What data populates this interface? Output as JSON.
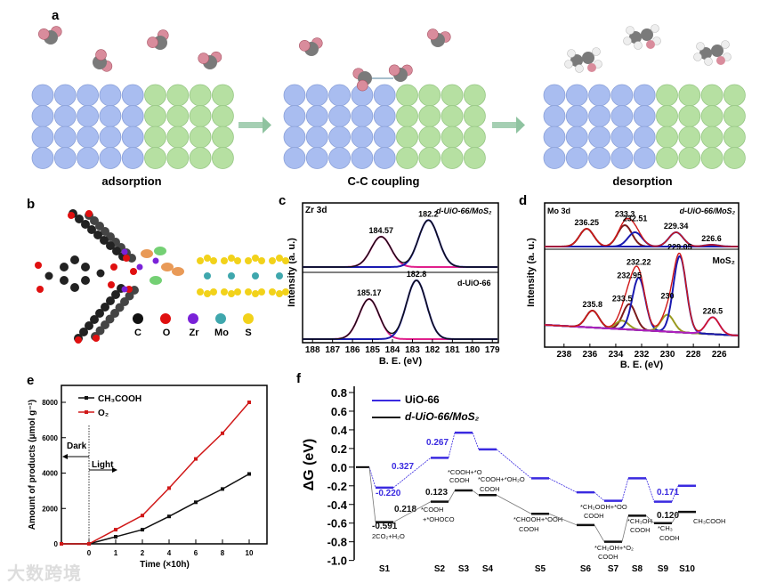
{
  "panels": {
    "a": "a",
    "b": "b",
    "c": "c",
    "d": "d",
    "e": "e",
    "f": "f"
  },
  "panel_a": {
    "steps": [
      "adsorption",
      "C-C coupling",
      "desorption"
    ],
    "colors": {
      "zr_side": "#a9bdf0",
      "mo_side": "#b6e0a2",
      "carbon": "#7a7a7a",
      "oxygen": "#d98c9c",
      "hydrogen": "#eeeeee",
      "arrow": "#8fc3a0"
    }
  },
  "panel_b": {
    "legend": [
      {
        "label": "C",
        "color": "#111111"
      },
      {
        "label": "O",
        "color": "#e01010"
      },
      {
        "label": "Zr",
        "color": "#7a22d8"
      },
      {
        "label": "Mo",
        "color": "#3fa7ad"
      },
      {
        "label": "S",
        "color": "#f2d21a"
      }
    ]
  },
  "watermark": "大数跨境",
  "chart_data": [
    {
      "panel": "c",
      "type": "line",
      "title": "Zr 3d",
      "xlabel": "B. E. (eV)",
      "ylabel": "Intensity (a. u.)",
      "xlim": [
        188.5,
        178.7
      ],
      "xticks": [
        "188",
        "187",
        "186",
        "185",
        "184",
        "183",
        "182",
        "181",
        "180",
        "179"
      ],
      "series": [
        {
          "name": "d-UiO-66/MoS2",
          "peaks": [
            {
              "center": 184.57,
              "label": "184.57",
              "height": 0.55,
              "color": "#e0208c"
            },
            {
              "center": 182.2,
              "label": "182.2",
              "height": 0.85,
              "color": "#1a1ab0"
            }
          ]
        },
        {
          "name": "d-UiO-66",
          "peaks": [
            {
              "center": 185.17,
              "label": "185.17",
              "height": 0.6,
              "color": "#e0208c"
            },
            {
              "center": 182.8,
              "label": "182.8",
              "height": 0.88,
              "color": "#1a1ab0"
            }
          ]
        }
      ],
      "labels": {
        "top": "d-UiO-66/MoS₂",
        "bottom": "d-UiO-66"
      }
    },
    {
      "panel": "d",
      "type": "line",
      "title": "Mo 3d",
      "xlabel": "B. E. (eV)",
      "ylabel": "Intensity (a. u.)",
      "xlim": [
        239.5,
        224.5
      ],
      "xticks": [
        "238",
        "236",
        "234",
        "232",
        "230",
        "228",
        "226"
      ],
      "series": [
        {
          "name": "d-UiO-66/MoS2",
          "peaks": [
            {
              "center": 236.25,
              "label": "236.25",
              "height": 0.5,
              "color": "#7a1a1a"
            },
            {
              "center": 233.3,
              "label": "233.3",
              "height": 0.6,
              "color": "#7a1a1a"
            },
            {
              "center": 232.51,
              "label": "232.51",
              "height": 0.4,
              "color": "#1a1ab0"
            },
            {
              "center": 229.34,
              "label": "229.34",
              "height": 0.4,
              "color": "#1a1ab0"
            },
            {
              "center": 226.6,
              "label": "226.6",
              "height": 0.05,
              "color": "#1a1ab0"
            }
          ]
        },
        {
          "name": "MoS2",
          "peaks": [
            {
              "center": 235.8,
              "label": "235.8",
              "height": 0.2,
              "color": "#7a1a1a"
            },
            {
              "center": 232.95,
              "label": "232.95",
              "height": 0.3,
              "color": "#7a1a1a"
            },
            {
              "center": 233.5,
              "label": "233.5",
              "height": 0.1,
              "color": "#9a9a20"
            },
            {
              "center": 232.22,
              "label": "232.22",
              "height": 0.62,
              "color": "#1a1ab0"
            },
            {
              "center": 230,
              "label": "230",
              "height": 0.2,
              "color": "#9a9a20"
            },
            {
              "center": 229.05,
              "label": "229.05",
              "height": 0.9,
              "color": "#1a1ab0"
            },
            {
              "center": 226.5,
              "label": "226.5",
              "height": 0.2,
              "color": "#b020c0"
            }
          ]
        }
      ],
      "labels": {
        "top": "d-UiO-66/MoS₂",
        "bottom": "MoS₂"
      }
    },
    {
      "panel": "e",
      "type": "line",
      "xlabel": "Time (×10h)",
      "ylabel": "Amount of products (μmol g⁻¹)",
      "ylim": [
        0,
        8000
      ],
      "categories": [
        "",
        "0",
        "1",
        "2",
        "4",
        "6",
        "8",
        "10"
      ],
      "yticks": [
        "0",
        "2000",
        "4000",
        "6000",
        "8000"
      ],
      "series": [
        {
          "name": "CH₃COOH",
          "color": "#111111",
          "values": [
            0,
            0,
            400,
            800,
            1550,
            2350,
            3100,
            3950
          ]
        },
        {
          "name": "O₂",
          "color": "#d01818",
          "values": [
            0,
            0,
            800,
            1600,
            3150,
            4800,
            6250,
            8000
          ]
        }
      ],
      "annotations": {
        "dark": "Dark",
        "light": "Light"
      }
    },
    {
      "panel": "f",
      "type": "line",
      "ylabel": "ΔG (eV)",
      "ylim": [
        -1.0,
        0.8
      ],
      "yticks": [
        "0.8",
        "0.6",
        "0.4",
        "0.2",
        "0.0",
        "-0.2",
        "-0.4",
        "-0.6",
        "-0.8",
        "-1.0"
      ],
      "categories": [
        "S1",
        "S2",
        "S3",
        "S4",
        "S5",
        "S6",
        "S7",
        "S8",
        "S9",
        "S10"
      ],
      "series": [
        {
          "name": "UiO-66",
          "color": "#3a2ae0",
          "values": [
            -0.22,
            0.1,
            0.37,
            0.19,
            -0.12,
            -0.27,
            -0.36,
            -0.12,
            -0.37,
            -0.2
          ]
        },
        {
          "name": "d-UiO-66/MoS₂",
          "color": "#111111",
          "values": [
            -0.59,
            -0.37,
            -0.25,
            -0.3,
            -0.5,
            -0.62,
            -0.8,
            -0.52,
            -0.6,
            -0.48
          ]
        }
      ],
      "value_labels_blue": [
        "0.327",
        "-0.220",
        "0.267",
        "0.171"
      ],
      "value_labels_black": [
        "0.218",
        "-0.591",
        "0.123",
        "0.120"
      ],
      "species": [
        "2CO₂+H₂O",
        "*COOH",
        "+*OHOCO",
        "*COOH+*O",
        "COOH",
        "*COOH+*OH₂O",
        "COOH",
        "*CHOOH+*OOH",
        "COOH",
        "*CH₂OOH+*OO",
        "COOH",
        "*CH₂OH+*O₂",
        "COOH",
        "*CH₃OH",
        "COOH",
        "*CH₃",
        "COOH",
        "CH₃COOH"
      ]
    }
  ]
}
